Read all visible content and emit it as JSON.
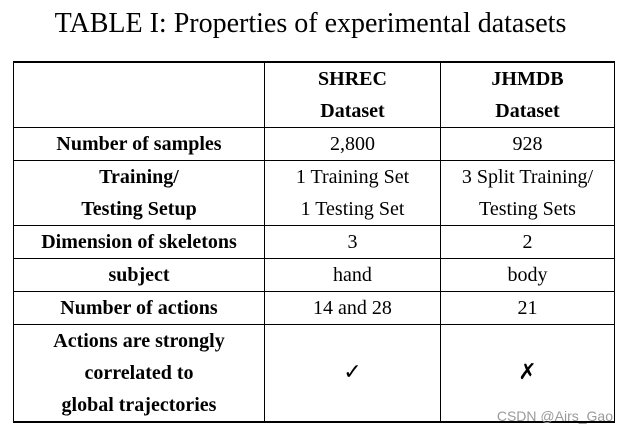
{
  "caption": "TABLE I: Properties of experimental datasets",
  "columns": [
    {
      "line1": "SHREC",
      "line2": "Dataset"
    },
    {
      "line1": "JHMDB",
      "line2": "Dataset"
    }
  ],
  "rows": [
    {
      "label": [
        "Number of samples"
      ],
      "values": [
        [
          "2,800"
        ],
        [
          "928"
        ]
      ]
    },
    {
      "label": [
        "Training/",
        "Testing Setup"
      ],
      "values": [
        [
          "1 Training Set",
          "1 Testing Set"
        ],
        [
          "3 Split Training/",
          "Testing Sets"
        ]
      ]
    },
    {
      "label": [
        "Dimension of skeletons"
      ],
      "values": [
        [
          "3"
        ],
        [
          "2"
        ]
      ]
    },
    {
      "label": [
        "subject"
      ],
      "values": [
        [
          "hand"
        ],
        [
          "body"
        ]
      ]
    },
    {
      "label": [
        "Number of actions"
      ],
      "values": [
        [
          "14 and 28"
        ],
        [
          "21"
        ]
      ]
    },
    {
      "label": [
        "Actions are strongly",
        "correlated to",
        "global trajectories"
      ],
      "values": [
        [
          "✓"
        ],
        [
          "✗"
        ]
      ]
    }
  ],
  "watermark": "CSDN @Airs_Gao"
}
